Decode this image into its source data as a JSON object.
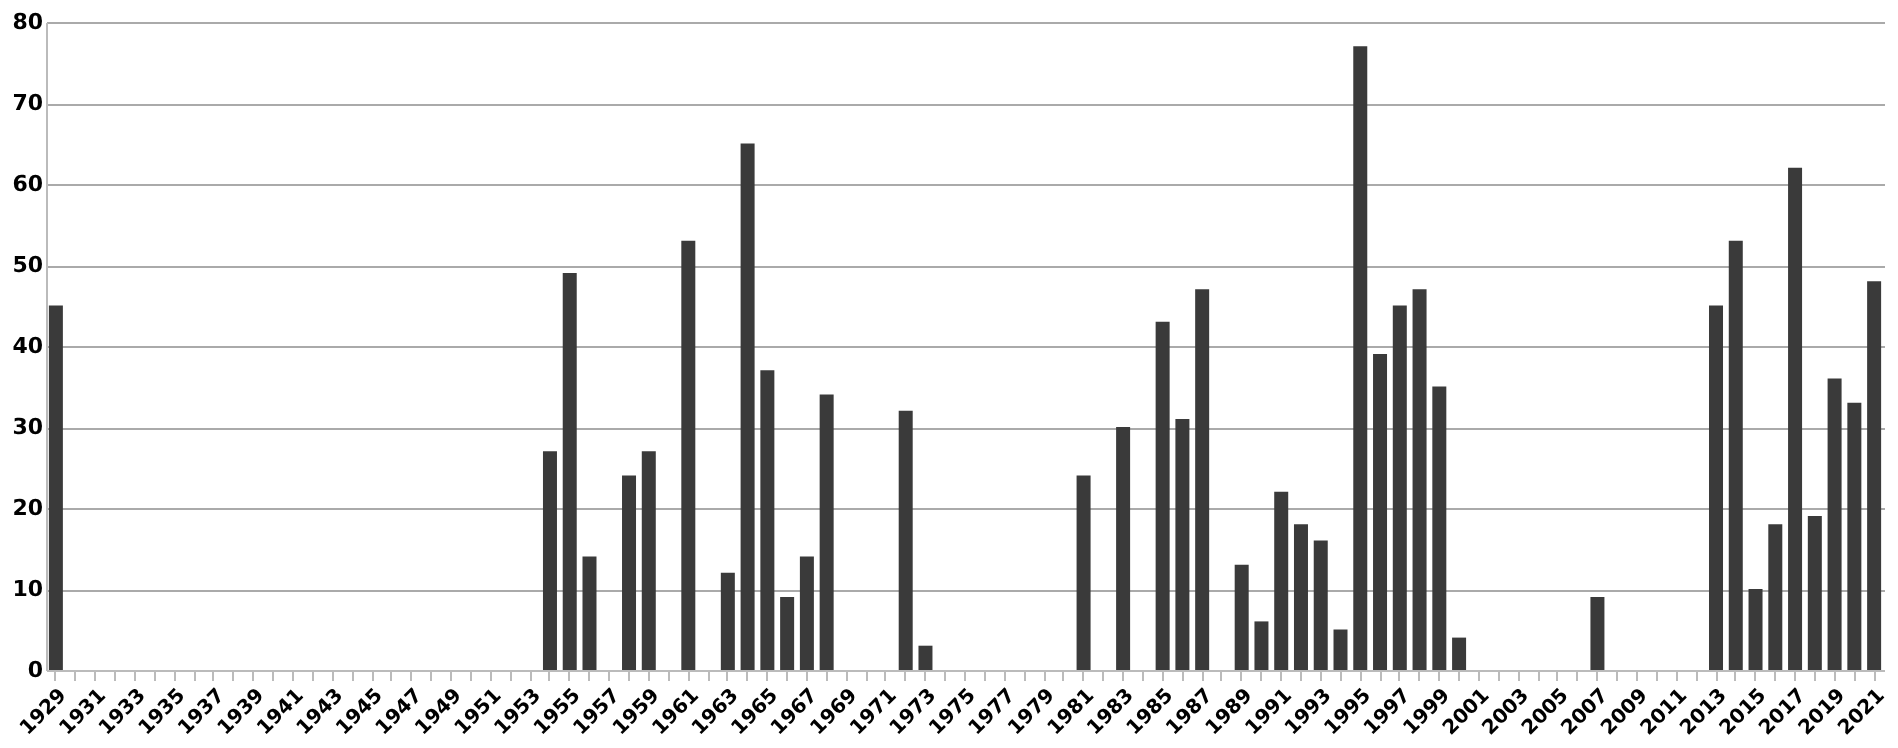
{
  "chart_data": {
    "type": "bar",
    "categories": [
      "1929",
      null,
      "1931",
      null,
      "1933",
      null,
      "1935",
      null,
      "1937",
      null,
      "1939",
      null,
      "1941",
      null,
      "1943",
      null,
      "1945",
      null,
      "1947",
      null,
      "1949",
      null,
      "1951",
      null,
      "1953",
      null,
      "1955",
      null,
      "1957",
      null,
      "1959",
      null,
      "1961",
      null,
      "1963",
      null,
      "1965",
      null,
      "1967",
      null,
      "1969",
      null,
      "1971",
      null,
      "1973",
      null,
      "1975",
      null,
      "1977",
      null,
      "1979",
      null,
      "1981",
      null,
      "1983",
      null,
      "1985",
      null,
      "1987",
      null,
      "1989",
      null,
      "1991",
      null,
      "1993",
      null,
      "1995",
      null,
      "1997",
      null,
      "1999",
      null,
      "2001",
      null,
      "2003",
      null,
      "2005",
      null,
      "2007",
      null,
      "2009",
      null,
      "2011",
      null,
      "2013",
      null,
      "2015",
      null,
      "2017",
      null,
      "2019",
      null,
      "2021"
    ],
    "values": [
      45,
      0,
      0,
      0,
      0,
      0,
      0,
      0,
      0,
      0,
      0,
      0,
      0,
      0,
      0,
      0,
      0,
      0,
      0,
      0,
      0,
      0,
      0,
      0,
      0,
      27,
      49,
      14,
      0,
      24,
      27,
      0,
      53,
      0,
      12,
      65,
      37,
      9,
      14,
      34,
      0,
      0,
      0,
      32,
      3,
      0,
      0,
      0,
      0,
      0,
      0,
      0,
      24,
      0,
      30,
      0,
      43,
      31,
      47,
      0,
      13,
      6,
      22,
      18,
      16,
      5,
      77,
      39,
      45,
      47,
      35,
      4,
      0,
      0,
      0,
      0,
      0,
      0,
      9,
      0,
      0,
      0,
      0,
      0,
      45,
      53,
      10,
      18,
      62,
      19,
      36,
      33,
      48
    ],
    "color": "#3a3a3a",
    "ylim": [
      0,
      80
    ],
    "yticks": [
      0,
      10,
      20,
      30,
      40,
      50,
      60,
      70,
      80
    ],
    "grid": "y"
  }
}
